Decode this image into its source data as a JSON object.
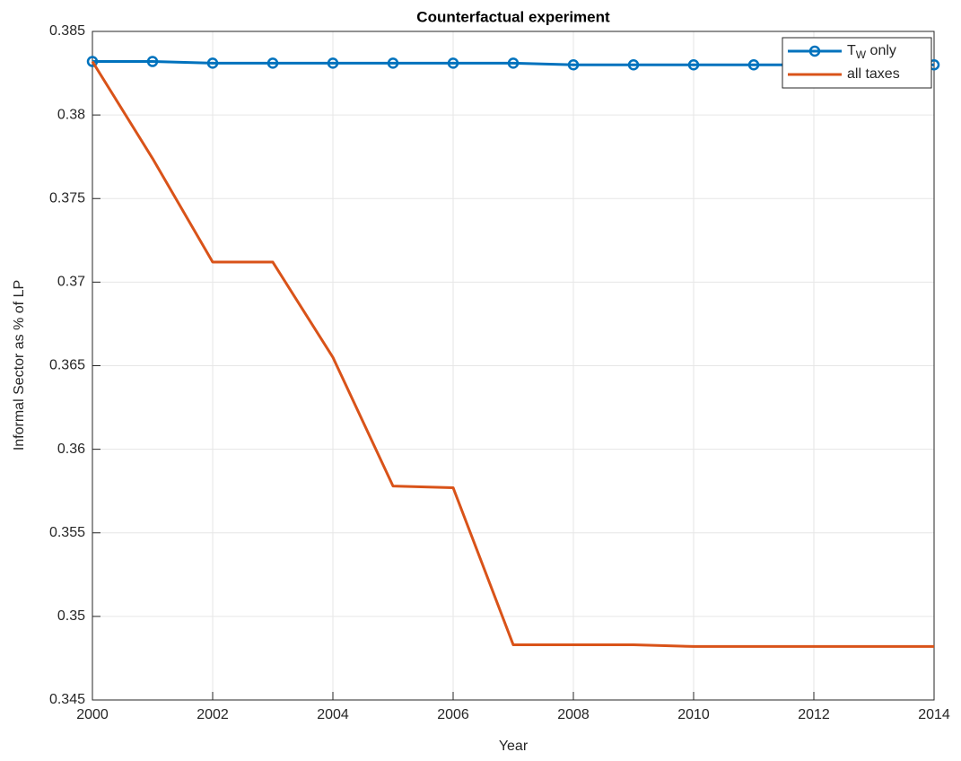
{
  "chart_data": {
    "type": "line",
    "title": "Counterfactual experiment",
    "x_label": "Year",
    "y_label": "Informal Sector as % of LP",
    "x": [
      2000,
      2001,
      2002,
      2003,
      2004,
      2005,
      2006,
      2007,
      2008,
      2009,
      2010,
      2011,
      2012,
      2013,
      2014
    ],
    "series": [
      {
        "name": "T_W only",
        "color": "#0072BD",
        "marker": "circle",
        "values": [
          0.3832,
          0.3832,
          0.3831,
          0.3831,
          0.3831,
          0.3831,
          0.3831,
          0.3831,
          0.383,
          0.383,
          0.383,
          0.383,
          0.383,
          0.383,
          0.383
        ]
      },
      {
        "name": "all taxes",
        "color": "#D95319",
        "values": [
          0.3832,
          0.3774,
          0.3712,
          0.3712,
          0.3655,
          0.3578,
          0.3577,
          0.3483,
          0.3483,
          0.3483,
          0.3482,
          0.3482,
          0.3482,
          0.3482,
          0.3482
        ]
      }
    ],
    "xlim": [
      2000,
      2014
    ],
    "xticks": [
      2000,
      2002,
      2004,
      2006,
      2008,
      2010,
      2012,
      2014
    ],
    "ylim": [
      0.345,
      0.385
    ],
    "yticks": [
      0.345,
      0.35,
      0.355,
      0.36,
      0.365,
      0.37,
      0.375,
      0.38,
      0.385
    ],
    "grid": true,
    "legend_position": "northeast"
  }
}
